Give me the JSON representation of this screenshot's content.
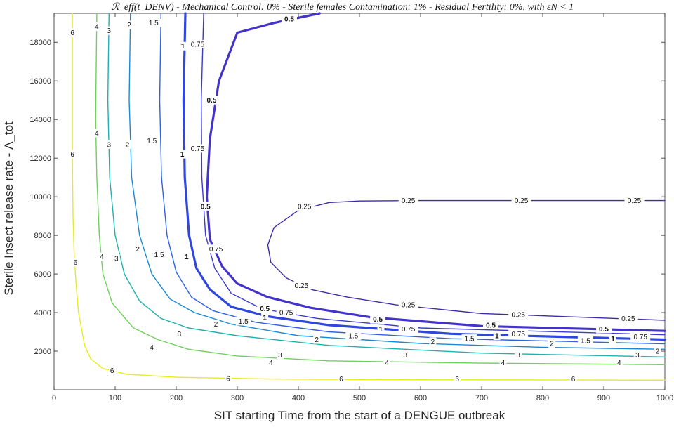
{
  "chart_data": {
    "type": "contour",
    "title": "ℛ_eff(t_DENV) - Mechanical Control: 0% - Sterile females Contamination: 1% - Residual Fertility: 0%, with εN < 1",
    "xlabel": "SIT starting Time from the start of a DENGUE outbreak",
    "ylabel": "Sterile Insect release rate - Λ_tot",
    "xlim": [
      0,
      1000
    ],
    "ylim": [
      0,
      19500
    ],
    "x_ticks": [
      0,
      100,
      200,
      300,
      400,
      500,
      600,
      700,
      800,
      900,
      1000
    ],
    "y_ticks": [
      2000,
      4000,
      6000,
      8000,
      10000,
      12000,
      14000,
      16000,
      18000
    ],
    "grid": false,
    "levels": [
      {
        "label": "6",
        "color": "#e8ec1c",
        "width": 1.4,
        "bold": false,
        "points": [
          [
            30,
            19500
          ],
          [
            30,
            12000
          ],
          [
            31,
            9000
          ],
          [
            33,
            7000
          ],
          [
            36,
            5500
          ],
          [
            40,
            4000
          ],
          [
            50,
            2300
          ],
          [
            60,
            1600
          ],
          [
            80,
            1100
          ],
          [
            120,
            800
          ],
          [
            200,
            650
          ],
          [
            350,
            560
          ],
          [
            600,
            520
          ],
          [
            1000,
            500
          ]
        ],
        "label_positions": [
          [
            30,
            18500
          ],
          [
            30,
            12200
          ],
          [
            35,
            6600
          ],
          [
            95,
            1000
          ],
          [
            285,
            580
          ],
          [
            470,
            555
          ],
          [
            660,
            555
          ],
          [
            850,
            555
          ]
        ]
      },
      {
        "label": "4",
        "color": "#6ed15a",
        "width": 1.4,
        "bold": false,
        "points": [
          [
            70,
            19500
          ],
          [
            68,
            14000
          ],
          [
            70,
            11000
          ],
          [
            74,
            8000
          ],
          [
            80,
            6000
          ],
          [
            95,
            4500
          ],
          [
            130,
            3200
          ],
          [
            170,
            2600
          ],
          [
            220,
            2100
          ],
          [
            300,
            1750
          ],
          [
            450,
            1500
          ],
          [
            700,
            1380
          ],
          [
            1000,
            1300
          ]
        ],
        "label_positions": [
          [
            70,
            18800
          ],
          [
            70,
            13300
          ],
          [
            78,
            6900
          ],
          [
            160,
            2200
          ],
          [
            355,
            1400
          ],
          [
            545,
            1400
          ],
          [
            735,
            1400
          ],
          [
            925,
            1400
          ]
        ]
      },
      {
        "label": "3",
        "color": "#1fb1b0",
        "width": 1.4,
        "bold": false,
        "points": [
          [
            90,
            19500
          ],
          [
            88,
            15000
          ],
          [
            91,
            11000
          ],
          [
            100,
            8000
          ],
          [
            115,
            6000
          ],
          [
            140,
            4600
          ],
          [
            175,
            3700
          ],
          [
            220,
            3200
          ],
          [
            300,
            2800
          ],
          [
            450,
            2300
          ],
          [
            700,
            1900
          ],
          [
            1000,
            1700
          ]
        ],
        "label_positions": [
          [
            90,
            18600
          ],
          [
            90,
            12700
          ],
          [
            102,
            6800
          ],
          [
            205,
            2900
          ],
          [
            370,
            1800
          ],
          [
            575,
            1800
          ],
          [
            760,
            1800
          ],
          [
            955,
            1800
          ]
        ]
      },
      {
        "label": "2",
        "color": "#1a8ad6",
        "width": 1.4,
        "bold": false,
        "points": [
          [
            125,
            19500
          ],
          [
            123,
            15000
          ],
          [
            127,
            11000
          ],
          [
            140,
            8000
          ],
          [
            160,
            6000
          ],
          [
            190,
            4700
          ],
          [
            230,
            4000
          ],
          [
            290,
            3400
          ],
          [
            400,
            2800
          ],
          [
            600,
            2400
          ],
          [
            800,
            2200
          ],
          [
            1000,
            2100
          ]
        ],
        "label_positions": [
          [
            123,
            18900
          ],
          [
            120,
            12700
          ],
          [
            137,
            7300
          ],
          [
            265,
            3400
          ],
          [
            430,
            2600
          ],
          [
            620,
            2500
          ],
          [
            815,
            2400
          ],
          [
            988,
            2000
          ]
        ]
      },
      {
        "label": "1.5",
        "color": "#2f63e3",
        "width": 1.4,
        "bold": false,
        "points": [
          [
            175,
            19500
          ],
          [
            173,
            15000
          ],
          [
            176,
            11000
          ],
          [
            185,
            8000
          ],
          [
            200,
            6100
          ],
          [
            225,
            4800
          ],
          [
            260,
            4100
          ],
          [
            330,
            3500
          ],
          [
            450,
            3000
          ],
          [
            650,
            2650
          ],
          [
            1000,
            2380
          ]
        ],
        "label_positions": [
          [
            163,
            19000
          ],
          [
            160,
            12900
          ],
          [
            172,
            7000
          ],
          [
            310,
            3550
          ],
          [
            490,
            2800
          ],
          [
            680,
            2650
          ],
          [
            870,
            2550
          ]
        ]
      },
      {
        "label": "1",
        "color": "#2f47dc",
        "width": 3.2,
        "bold": true,
        "points": [
          [
            215,
            19500
          ],
          [
            212,
            15000
          ],
          [
            214,
            11000
          ],
          [
            221,
            8000
          ],
          [
            233,
            6300
          ],
          [
            255,
            5200
          ],
          [
            290,
            4300
          ],
          [
            350,
            3800
          ],
          [
            450,
            3350
          ],
          [
            650,
            2900
          ],
          [
            1000,
            2600
          ]
        ],
        "label_positions": [
          [
            211,
            17800
          ],
          [
            210,
            12200
          ],
          [
            217,
            6900
          ],
          [
            345,
            3750
          ],
          [
            535,
            3150
          ],
          [
            725,
            2800
          ],
          [
            915,
            2630
          ]
        ]
      },
      {
        "label": "0.75",
        "color": "#3b3ad2",
        "width": 1.4,
        "bold": false,
        "points": [
          [
            245,
            19500
          ],
          [
            241,
            15000
          ],
          [
            242,
            11000
          ],
          [
            248,
            8000
          ],
          [
            263,
            6300
          ],
          [
            290,
            5000
          ],
          [
            340,
            4200
          ],
          [
            430,
            3700
          ],
          [
            600,
            3200
          ],
          [
            1000,
            2850
          ]
        ],
        "label_positions": [
          [
            235,
            17900
          ],
          [
            235,
            12500
          ],
          [
            265,
            7300
          ],
          [
            380,
            4000
          ],
          [
            580,
            3150
          ],
          [
            760,
            2900
          ],
          [
            960,
            2750
          ]
        ]
      },
      {
        "label": "0.5",
        "color": "#4333c9",
        "width": 3.2,
        "bold": true,
        "points": [
          [
            435,
            19500
          ],
          [
            360,
            19000
          ],
          [
            300,
            18500
          ],
          [
            270,
            16000
          ],
          [
            255,
            13000
          ],
          [
            250,
            10000
          ],
          [
            255,
            7800
          ],
          [
            275,
            6400
          ],
          [
            300,
            5500
          ],
          [
            350,
            4800
          ],
          [
            420,
            4250
          ],
          [
            520,
            3750
          ],
          [
            700,
            3300
          ],
          [
            1000,
            3050
          ]
        ],
        "label_positions": [
          [
            385,
            19200
          ],
          [
            258,
            15000
          ],
          [
            248,
            9500
          ],
          [
            345,
            4200
          ],
          [
            530,
            3650
          ],
          [
            715,
            3350
          ],
          [
            900,
            3150
          ]
        ]
      },
      {
        "label": "0.25",
        "color": "#3f2aa9",
        "width": 1.4,
        "bold": false,
        "points": [
          [
            1000,
            9800
          ],
          [
            600,
            9800
          ],
          [
            500,
            9780
          ],
          [
            450,
            9700
          ],
          [
            400,
            9300
          ],
          [
            360,
            8400
          ],
          [
            350,
            7500
          ],
          [
            355,
            6600
          ],
          [
            380,
            5800
          ],
          [
            420,
            5200
          ],
          [
            480,
            4800
          ],
          [
            560,
            4400
          ],
          [
            700,
            3950
          ],
          [
            1000,
            3600
          ]
        ],
        "label_positions": [
          [
            410,
            9500
          ],
          [
            580,
            9800
          ],
          [
            765,
            9800
          ],
          [
            950,
            9800
          ],
          [
            405,
            5400
          ],
          [
            580,
            4400
          ],
          [
            760,
            3900
          ],
          [
            940,
            3700
          ]
        ]
      }
    ]
  }
}
